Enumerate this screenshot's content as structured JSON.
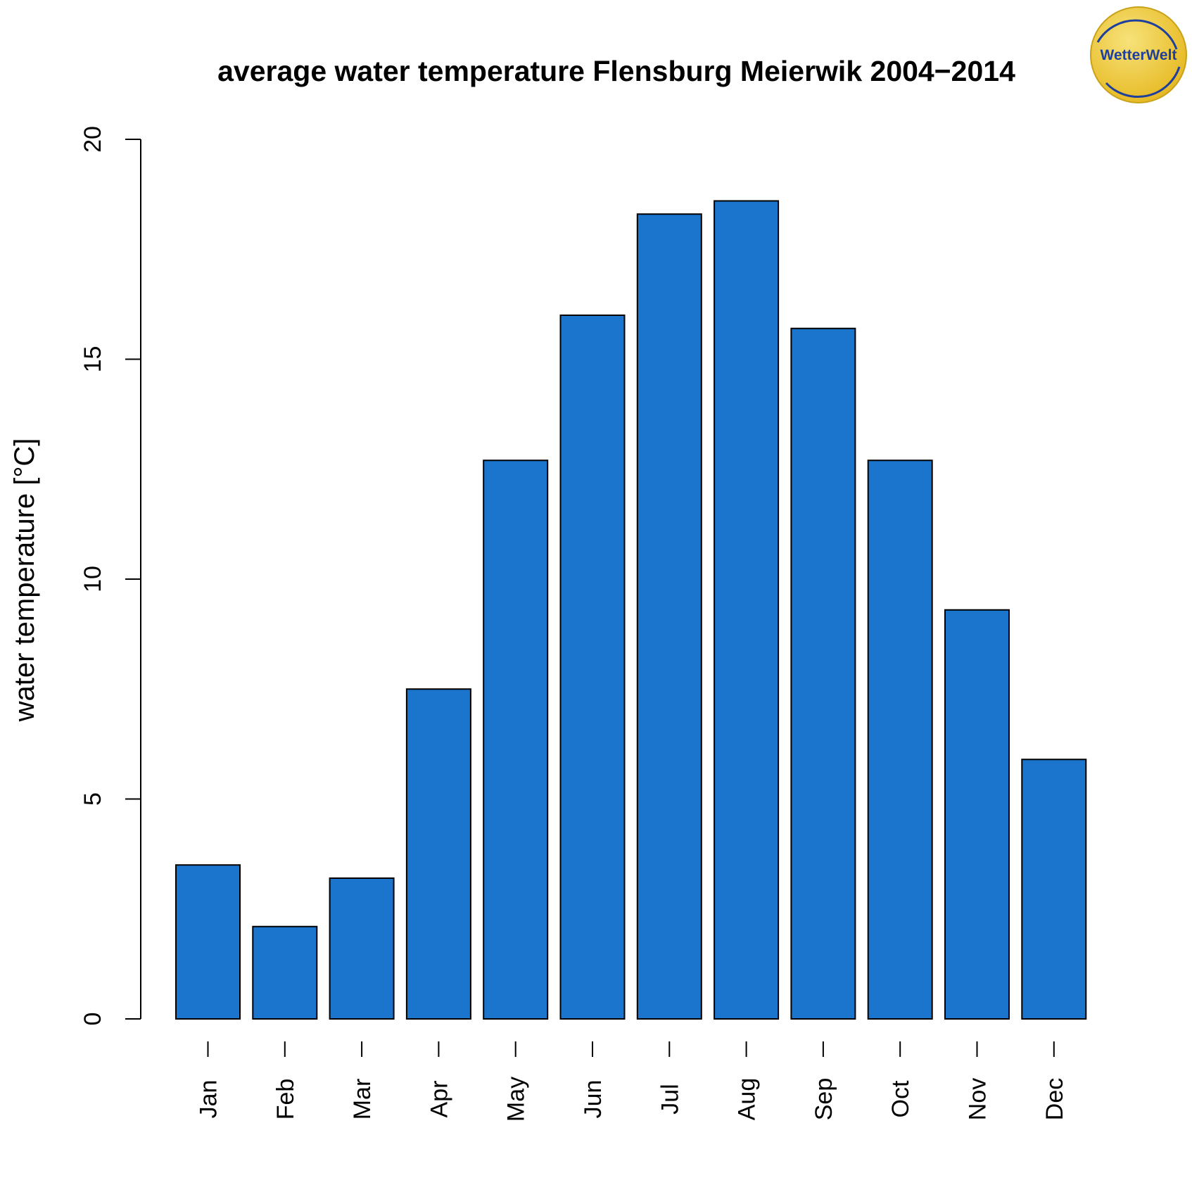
{
  "chart_data": {
    "type": "bar",
    "title": "average water temperature Flensburg Meierwik 2004−2014",
    "xlabel": "",
    "ylabel": "water temperature [°C]",
    "ylim": [
      0,
      20
    ],
    "yticks": [
      0,
      5,
      10,
      15,
      20
    ],
    "categories": [
      "Jan",
      "Feb",
      "Mar",
      "Apr",
      "May",
      "Jun",
      "Jul",
      "Aug",
      "Sep",
      "Oct",
      "Nov",
      "Dec"
    ],
    "values": [
      3.5,
      2.1,
      3.2,
      7.5,
      12.7,
      16.0,
      18.3,
      18.6,
      15.7,
      12.7,
      9.3,
      5.9
    ],
    "bar_color": "#1c75cd",
    "bar_edge_color": "#000000",
    "grid": false,
    "legend": "none"
  },
  "logo": {
    "text": "WetterWelt",
    "fill_color": "#e6b820",
    "text_color": "#1f3f9c"
  }
}
